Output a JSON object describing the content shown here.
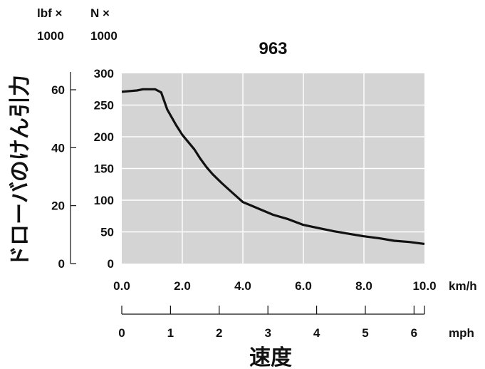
{
  "chart_data": {
    "type": "line",
    "title": "963",
    "ylabel": "ドローバのけん引力",
    "xlabel": "速度",
    "xlim": [
      0,
      10
    ],
    "ylim": [
      0,
      300
    ],
    "x_ticks": [
      "0.0",
      "2.0",
      "4.0",
      "6.0",
      "8.0",
      "10.0"
    ],
    "x_unit": "km/h",
    "y_ticks": [
      "0",
      "50",
      "100",
      "150",
      "200",
      "250",
      "300"
    ],
    "y_unit_top": "N ×",
    "y_unit_bottom": "1000",
    "secondary_x": {
      "unit": "mph",
      "ticks": [
        {
          "value": 0,
          "label": "0"
        },
        {
          "value": 1,
          "label": "1"
        },
        {
          "value": 2,
          "label": "2"
        },
        {
          "value": 3,
          "label": "3"
        },
        {
          "value": 4,
          "label": "4"
        },
        {
          "value": 5,
          "label": "5"
        },
        {
          "value": 6,
          "label": "6"
        }
      ]
    },
    "secondary_y": {
      "unit_top": "lbf ×",
      "unit_bottom": "1000",
      "ticks": [
        {
          "value": 0,
          "label": "0"
        },
        {
          "value": 20,
          "label": "20"
        },
        {
          "value": 40,
          "label": "40"
        },
        {
          "value": 60,
          "label": "60"
        }
      ]
    },
    "grid": true,
    "background_color": "#d4d4d4",
    "line_color": "#111111",
    "series": [
      {
        "x": [
          0.0,
          0.5,
          0.7,
          1.1,
          1.3,
          1.5,
          1.8,
          2.0,
          2.4,
          2.6,
          2.8,
          3.0,
          3.3,
          3.6,
          4.0,
          4.3,
          4.6,
          5.0,
          5.5,
          6.0,
          6.5,
          7.0,
          7.5,
          8.0,
          8.5,
          9.0,
          9.5,
          10.0
        ],
        "y": [
          271,
          273,
          275,
          275,
          270,
          243,
          218,
          203,
          180,
          165,
          152,
          141,
          127,
          114,
          97,
          91,
          85,
          77,
          70,
          61,
          56,
          51,
          47,
          43,
          40,
          36,
          34,
          31
        ]
      }
    ]
  }
}
